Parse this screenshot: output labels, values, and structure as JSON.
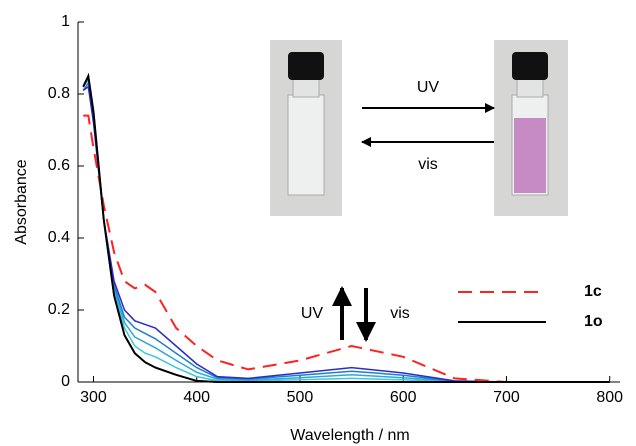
{
  "chart_data": {
    "type": "line",
    "x_label": "Wavelength / nm",
    "y_label": "Absorbance",
    "x": [
      290,
      295,
      300,
      310,
      320,
      330,
      340,
      350,
      360,
      380,
      400,
      420,
      450,
      500,
      550,
      600,
      650,
      700,
      800
    ],
    "series": [
      {
        "color": "#000000",
        "linestyle": "solid",
        "values": [
          0.82,
          0.85,
          0.75,
          0.45,
          0.24,
          0.13,
          0.08,
          0.055,
          0.04,
          0.02,
          0.003,
          0,
          0,
          0,
          0,
          0,
          0,
          0,
          0
        ]
      },
      {
        "color": "#3cc8e0",
        "linestyle": "solid",
        "values": [
          0.82,
          0.84,
          0.74,
          0.45,
          0.25,
          0.15,
          0.1,
          0.08,
          0.07,
          0.04,
          0.015,
          0.004,
          0.003,
          0.006,
          0.01,
          0.006,
          0.001,
          0,
          0
        ]
      },
      {
        "color": "#2fa8d8",
        "linestyle": "solid",
        "values": [
          0.82,
          0.84,
          0.74,
          0.45,
          0.26,
          0.165,
          0.125,
          0.11,
          0.095,
          0.06,
          0.027,
          0.008,
          0.005,
          0.012,
          0.02,
          0.012,
          0.002,
          0,
          0
        ]
      },
      {
        "color": "#1f80c8",
        "linestyle": "solid",
        "values": [
          0.81,
          0.83,
          0.73,
          0.45,
          0.27,
          0.18,
          0.15,
          0.135,
          0.12,
          0.08,
          0.04,
          0.012,
          0.008,
          0.019,
          0.03,
          0.019,
          0.002,
          0,
          0
        ]
      },
      {
        "color": "#2a2ad0",
        "linestyle": "solid",
        "values": [
          0.81,
          0.82,
          0.72,
          0.45,
          0.28,
          0.2,
          0.17,
          0.16,
          0.15,
          0.1,
          0.05,
          0.015,
          0.01,
          0.025,
          0.04,
          0.025,
          0.003,
          0,
          0
        ]
      },
      {
        "name": "1c",
        "color": "#ff2020",
        "linestyle": "dashed",
        "values": [
          0.74,
          0.74,
          0.65,
          0.49,
          0.36,
          0.28,
          0.26,
          0.27,
          0.25,
          0.15,
          0.1,
          0.06,
          0.035,
          0.06,
          0.1,
          0.07,
          0.01,
          0,
          0
        ]
      },
      {
        "name": "1o",
        "color": "#000000",
        "linestyle": "solid",
        "values": [
          0.82,
          0.85,
          0.75,
          0.45,
          0.24,
          0.13,
          0.08,
          0.055,
          0.04,
          0.02,
          0.003,
          0,
          0,
          0,
          0,
          0,
          0,
          0,
          0
        ]
      }
    ],
    "xlim": [
      285,
      810
    ],
    "xticks": [
      300,
      400,
      500,
      600,
      700,
      800
    ],
    "ylim": [
      0,
      1
    ],
    "yticks": [
      0,
      0.2,
      0.4,
      0.6,
      0.8,
      1
    ],
    "legend": "lower right",
    "annotations": [
      "UV",
      "vis",
      "UV",
      "vis"
    ]
  }
}
